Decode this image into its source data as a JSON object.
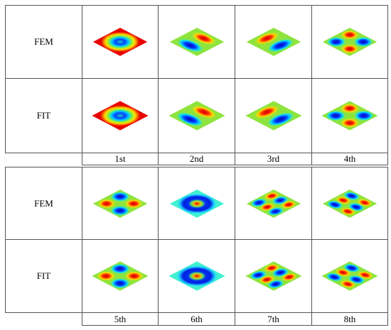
{
  "blocks": [
    {
      "rows": [
        "FEM",
        "FIT"
      ],
      "labels": [
        "1st",
        "2nd",
        "3rd",
        "4th"
      ]
    },
    {
      "rows": [
        "FEM",
        "FIT"
      ],
      "labels": [
        "5th",
        "6th",
        "7th",
        "8th"
      ]
    }
  ]
}
